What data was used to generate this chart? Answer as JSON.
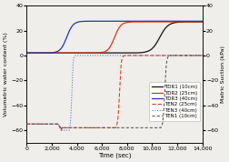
{
  "xlabel": "Time (sec)",
  "ylabel_left": "Volumetric water content (%)",
  "ylabel_right": "Matric Suction (kPa)",
  "xlim": [
    0,
    14000
  ],
  "ylim_left": [
    -70,
    40
  ],
  "ylim_right": [
    -70,
    40
  ],
  "xticks": [
    0,
    2000,
    4000,
    6000,
    8000,
    10000,
    12000,
    14000
  ],
  "yticks_left": [
    -60,
    -40,
    -20,
    0,
    20,
    40
  ],
  "yticks_right": [
    -60,
    -40,
    -20,
    0,
    20,
    40
  ],
  "background_color": "#f0eeea",
  "tdr1_color": "#111111",
  "tdr2_color": "#dd3311",
  "tdr3_color": "#2233bb",
  "ten1_color": "#555555",
  "ten2_color": "#dd3311",
  "ten3_color": "#5566cc",
  "tdr_init": 2.0,
  "tdr3_x0": 3200,
  "tdr3_k": 0.004,
  "tdr3_high": 27.5,
  "tdr2_x0": 7000,
  "tdr2_k": 0.004,
  "tdr2_high": 27.0,
  "tdr1_x0": 10600,
  "tdr1_k": 0.003,
  "tdr1_high": 27.0,
  "ten_init": -55.0,
  "ten3_drop_start": 2500,
  "ten3_drop_min": -60.0,
  "ten3_recover": 3400,
  "ten2_drop_start": 2500,
  "ten2_drop_min": -58.0,
  "ten2_recover": 7100,
  "ten1_drop_start": 2500,
  "ten1_drop_min": -58.0,
  "ten1_recover": 10700,
  "legend_labels": [
    "TDR1 (10cm)",
    "TDR2 (25cm)",
    "TDR3 (40cm)",
    "TEN2 (25cm)",
    "TEN3 (40cm)",
    "TEN1 (10cm)"
  ]
}
